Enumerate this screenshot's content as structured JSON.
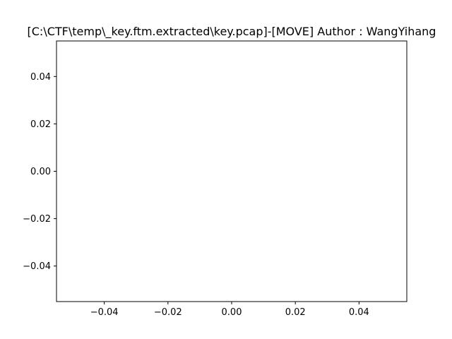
{
  "chart_data": {
    "type": "scatter",
    "title": "[C:\\CTF\\temp\\_key.ftm.extracted\\key.pcap]-[MOVE] Author : WangYihang",
    "xlabel": "",
    "ylabel": "",
    "x": [],
    "y": [],
    "xlim": [
      -0.055,
      0.055
    ],
    "ylim": [
      -0.055,
      0.055
    ],
    "xticks": [
      -0.04,
      -0.02,
      0.0,
      0.02,
      0.04
    ],
    "yticks": [
      -0.04,
      -0.02,
      0.0,
      0.02,
      0.04
    ],
    "xtick_labels": [
      "−0.04",
      "−0.02",
      "0.00",
      "0.02",
      "0.04"
    ],
    "ytick_labels": [
      "−0.04",
      "−0.02",
      "0.00",
      "0.02",
      "0.04"
    ],
    "grid": false,
    "legend": false
  },
  "colors": {
    "background": "#ffffff",
    "axes": "#000000",
    "text": "#000000"
  }
}
